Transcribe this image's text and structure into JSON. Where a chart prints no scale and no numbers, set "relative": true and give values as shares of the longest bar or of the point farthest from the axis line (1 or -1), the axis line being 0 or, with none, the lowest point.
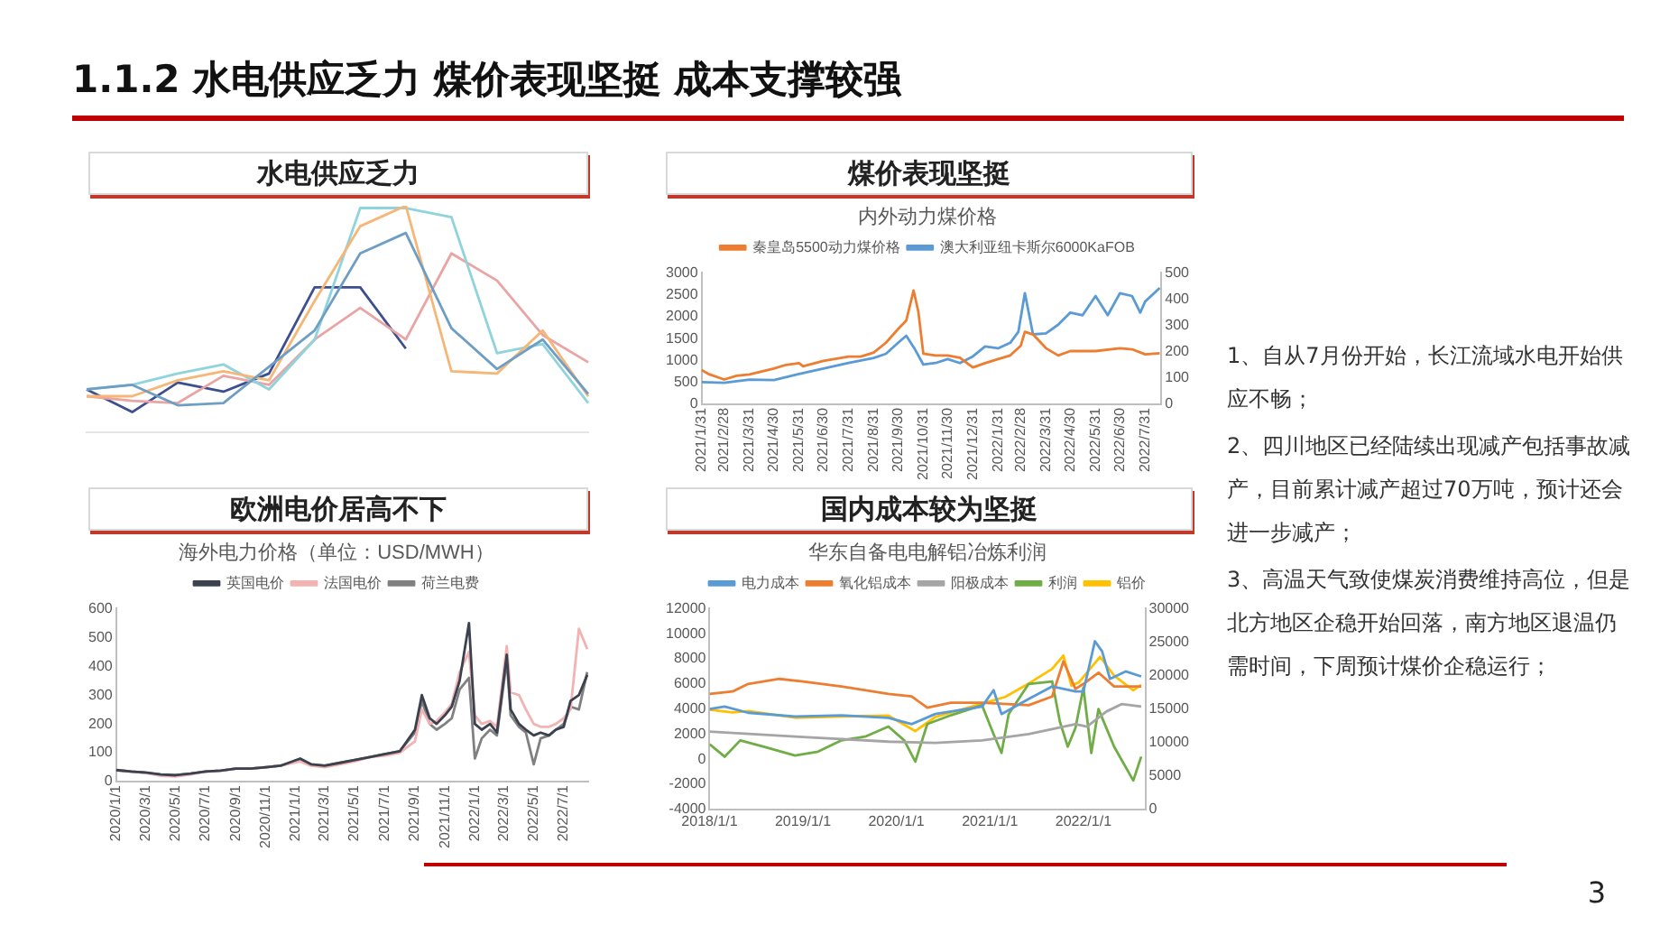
{
  "chart_data": [
    {
      "type": "line",
      "title": "水电供应乏力",
      "relative": true,
      "legend": false,
      "marker": "none",
      "categories": [
        null,
        null,
        null,
        null,
        null,
        null,
        null,
        null,
        null,
        null,
        null,
        null
      ],
      "series": [
        {
          "color": "#6f9ec4",
          "values": [
            0.19,
            0.21,
            0.12,
            0.13,
            0.29,
            0.45,
            0.79,
            0.88,
            0.46,
            0.28,
            0.41,
            0.17
          ]
        },
        {
          "color": "#f5b678",
          "values": [
            0.16,
            0.16,
            0.23,
            0.27,
            0.23,
            0.58,
            0.91,
            1,
            0.27,
            0.26,
            0.45,
            0.16
          ]
        },
        {
          "color": "#8fd3dc",
          "values": [
            0.19,
            0.21,
            0.26,
            0.3,
            0.19,
            0.41,
            0.99,
            0.99,
            0.95,
            0.35,
            0.39,
            0.13
          ]
        },
        {
          "color": "#eaa4a4",
          "values": [
            0.16,
            0.14,
            0.13,
            0.25,
            0.21,
            0.41,
            0.55,
            0.41,
            0.79,
            0.67,
            0.43,
            0.31
          ]
        },
        {
          "color": "#3d4f8f",
          "values": [
            0.19,
            0.09,
            0.22,
            0.18,
            0.26,
            0.64,
            0.64,
            0.37,
            null,
            null,
            null,
            null
          ]
        }
      ]
    },
    {
      "type": "line",
      "title": "煤价表现坚挺",
      "subtitle": "内外动力煤价格",
      "legend": "top",
      "marker": "none",
      "xlim": [
        "2021-01-31",
        "2022-08-20"
      ],
      "xticks": [
        {
          "value": "2021-01-31",
          "label": "2021/1/31"
        },
        {
          "value": "2021-02-28",
          "label": "2021/2/28"
        },
        {
          "value": "2021-03-31",
          "label": "2021/3/31"
        },
        {
          "value": "2021-04-30",
          "label": "2021/4/30"
        },
        {
          "value": "2021-05-31",
          "label": "2021/5/31"
        },
        {
          "value": "2021-06-30",
          "label": "2021/6/30"
        },
        {
          "value": "2021-07-31",
          "label": "2021/7/31"
        },
        {
          "value": "2021-08-31",
          "label": "2021/8/31"
        },
        {
          "value": "2021-09-30",
          "label": "2021/9/30"
        },
        {
          "value": "2021-10-31",
          "label": "2021/10/31"
        },
        {
          "value": "2021-11-30",
          "label": "2021/11/30"
        },
        {
          "value": "2021-12-31",
          "label": "2021/12/31"
        },
        {
          "value": "2022-01-31",
          "label": "2022/1/31"
        },
        {
          "value": "2022-02-28",
          "label": "2022/2/28"
        },
        {
          "value": "2022-03-31",
          "label": "2022/3/31"
        },
        {
          "value": "2022-04-30",
          "label": "2022/4/30"
        },
        {
          "value": "2022-05-31",
          "label": "2022/5/31"
        },
        {
          "value": "2022-06-30",
          "label": "2022/6/30"
        },
        {
          "value": "2022-07-31",
          "label": "2022/7/31"
        }
      ],
      "ylim": [
        0,
        3000
      ],
      "yticks": [
        0,
        500,
        1000,
        1500,
        2000,
        2500,
        3000
      ],
      "y2lim": [
        0,
        500
      ],
      "y2ticks": [
        0,
        100,
        200,
        300,
        400,
        500
      ],
      "series": [
        {
          "name": "秦皇岛5500动力煤价格",
          "color": "#ed7d31",
          "x": [
            "2021-01-31",
            "2021-02-10",
            "2021-02-28",
            "2021-03-15",
            "2021-03-31",
            "2021-04-30",
            "2021-05-15",
            "2021-05-31",
            "2021-06-05",
            "2021-06-30",
            "2021-07-31",
            "2021-08-15",
            "2021-08-31",
            "2021-09-15",
            "2021-09-30",
            "2021-10-10",
            "2021-10-19",
            "2021-10-25",
            "2021-10-31",
            "2021-11-15",
            "2021-11-30",
            "2021-12-15",
            "2021-12-31",
            "2022-01-15",
            "2022-01-31",
            "2022-02-15",
            "2022-02-28",
            "2022-03-05",
            "2022-03-15",
            "2022-03-31",
            "2022-04-15",
            "2022-04-30",
            "2022-05-31",
            "2022-06-30",
            "2022-07-15",
            "2022-07-31",
            "2022-08-18"
          ],
          "values": [
            780,
            680,
            565,
            650,
            680,
            815,
            900,
            940,
            865,
            990,
            1090,
            1090,
            1180,
            1405,
            1720,
            1910,
            2600,
            2100,
            1155,
            1115,
            1115,
            1065,
            840,
            940,
            1030,
            1115,
            1340,
            1655,
            1595,
            1280,
            1115,
            1215,
            1215,
            1280,
            1255,
            1140,
            1165
          ]
        },
        {
          "name": "澳大利亚纽卡斯尔6000KaFOB",
          "color": "#5b9bd5",
          "axis": "y2",
          "x": [
            "2021-01-31",
            "2021-02-28",
            "2021-03-31",
            "2021-04-30",
            "2021-05-31",
            "2021-06-30",
            "2021-07-31",
            "2021-08-31",
            "2021-09-15",
            "2021-09-30",
            "2021-10-10",
            "2021-10-20",
            "2021-10-31",
            "2021-11-15",
            "2021-11-30",
            "2021-12-15",
            "2021-12-31",
            "2022-01-15",
            "2022-01-31",
            "2022-02-15",
            "2022-02-25",
            "2022-03-05",
            "2022-03-15",
            "2022-03-31",
            "2022-04-15",
            "2022-04-30",
            "2022-05-15",
            "2022-05-31",
            "2022-06-15",
            "2022-06-30",
            "2022-07-15",
            "2022-07-25",
            "2022-07-31",
            "2022-08-18"
          ],
          "values": [
            84,
            82,
            94,
            92,
            115,
            136,
            157,
            176,
            192,
            234,
            261,
            213,
            151,
            157,
            172,
            157,
            182,
            220,
            213,
            234,
            276,
            423,
            266,
            270,
            303,
            349,
            339,
            412,
            339,
            423,
            412,
            349,
            391,
            443
          ]
        }
      ]
    },
    {
      "type": "line",
      "title": "欧洲电价居高不下",
      "subtitle": "海外电力价格（单位：USD/MWH）",
      "legend": "top",
      "marker": "none",
      "xlim": [
        "2020-01-01",
        "2022-08-20"
      ],
      "xticks": [
        {
          "value": "2020-01-01",
          "label": "2020/1/1"
        },
        {
          "value": "2020-03-01",
          "label": "2020/3/1"
        },
        {
          "value": "2020-05-01",
          "label": "2020/5/1"
        },
        {
          "value": "2020-07-01",
          "label": "2020/7/1"
        },
        {
          "value": "2020-09-01",
          "label": "2020/9/1"
        },
        {
          "value": "2020-11-01",
          "label": "2020/11/1"
        },
        {
          "value": "2021-01-01",
          "label": "2021/1/1"
        },
        {
          "value": "2021-03-01",
          "label": "2021/3/1"
        },
        {
          "value": "2021-05-01",
          "label": "2021/5/1"
        },
        {
          "value": "2021-07-01",
          "label": "2021/7/1"
        },
        {
          "value": "2021-09-01",
          "label": "2021/9/1"
        },
        {
          "value": "2021-11-01",
          "label": "2021/11/1"
        },
        {
          "value": "2022-01-01",
          "label": "2022/1/1"
        },
        {
          "value": "2022-03-01",
          "label": "2022/3/1"
        },
        {
          "value": "2022-05-01",
          "label": "2022/5/1"
        },
        {
          "value": "2022-07-01",
          "label": "2022/7/1"
        }
      ],
      "ylim": [
        0,
        600
      ],
      "yticks": [
        0,
        100,
        200,
        300,
        400,
        500,
        600
      ],
      "x": [
        "2020-01-01",
        "2020-02-01",
        "2020-03-01",
        "2020-04-01",
        "2020-05-01",
        "2020-06-01",
        "2020-07-01",
        "2020-08-01",
        "2020-09-01",
        "2020-10-01",
        "2020-11-01",
        "2020-12-01",
        "2021-01-10",
        "2021-02-01",
        "2021-03-01",
        "2021-04-01",
        "2021-05-01",
        "2021-06-01",
        "2021-07-01",
        "2021-08-01",
        "2021-09-01",
        "2021-09-15",
        "2021-10-01",
        "2021-10-15",
        "2021-11-01",
        "2021-11-15",
        "2021-12-01",
        "2021-12-20",
        "2022-01-01",
        "2022-01-15",
        "2022-02-01",
        "2022-02-15",
        "2022-03-07",
        "2022-03-15",
        "2022-04-01",
        "2022-04-15",
        "2022-05-01",
        "2022-05-15",
        "2022-06-01",
        "2022-06-15",
        "2022-07-01",
        "2022-07-15",
        "2022-08-01",
        "2022-08-18"
      ],
      "series": [
        {
          "name": "英国电价",
          "color": "#3b414e",
          "values": [
            40,
            35,
            32,
            25,
            22,
            28,
            35,
            38,
            45,
            45,
            50,
            55,
            80,
            60,
            55,
            65,
            75,
            85,
            95,
            105,
            180,
            300,
            220,
            200,
            230,
            260,
            350,
            550,
            200,
            180,
            200,
            170,
            440,
            250,
            200,
            180,
            160,
            170,
            160,
            180,
            190,
            280,
            300,
            370
          ]
        },
        {
          "name": "法国电价",
          "color": "#f2b3b3",
          "values": [
            40,
            35,
            30,
            20,
            18,
            25,
            35,
            38,
            45,
            45,
            50,
            55,
            70,
            55,
            50,
            60,
            70,
            85,
            90,
            100,
            140,
            250,
            200,
            210,
            240,
            270,
            380,
            450,
            230,
            200,
            210,
            190,
            470,
            310,
            300,
            250,
            200,
            190,
            190,
            200,
            220,
            250,
            530,
            460
          ]
        },
        {
          "name": "荷兰电费",
          "color": "#808080",
          "values": [
            40,
            35,
            30,
            25,
            22,
            28,
            35,
            38,
            45,
            45,
            50,
            55,
            75,
            60,
            55,
            65,
            75,
            85,
            95,
            105,
            170,
            280,
            200,
            180,
            200,
            220,
            320,
            360,
            80,
            150,
            180,
            160,
            420,
            230,
            190,
            170,
            60,
            150,
            160,
            180,
            200,
            260,
            250,
            380
          ]
        }
      ]
    },
    {
      "type": "line",
      "title": "国内成本较为坚挺",
      "subtitle": "华东自备电电解铝冶炼利润",
      "legend": "top",
      "marker": "none",
      "xlim": [
        "2018-01-01",
        "2022-08-31"
      ],
      "xticks": [
        {
          "value": "2018-01-01",
          "label": "2018/1/1"
        },
        {
          "value": "2019-01-01",
          "label": "2019/1/1"
        },
        {
          "value": "2020-01-01",
          "label": "2020/1/1"
        },
        {
          "value": "2021-01-01",
          "label": "2021/1/1"
        },
        {
          "value": "2022-01-01",
          "label": "2022/1/1"
        }
      ],
      "ylim": [
        -4000,
        12000
      ],
      "yticks": [
        -4000,
        -2000,
        0,
        2000,
        4000,
        6000,
        8000,
        10000,
        12000
      ],
      "y2lim": [
        0,
        30000
      ],
      "y2ticks": [
        0,
        5000,
        10000,
        15000,
        20000,
        25000,
        30000
      ],
      "series": [
        {
          "name": "电力成本",
          "color": "#5b9bd5",
          "x": [
            "2018-01-01",
            "2018-03-01",
            "2018-06-01",
            "2018-12-01",
            "2019-06-01",
            "2019-12-01",
            "2020-03-01",
            "2020-06-01",
            "2020-12-01",
            "2021-01-15",
            "2021-02-15",
            "2021-06-01",
            "2021-09-01",
            "2021-12-01",
            "2022-01-01",
            "2022-02-15",
            "2022-03-15",
            "2022-04-15",
            "2022-06-15",
            "2022-08-15"
          ],
          "values": [
            4000,
            4200,
            3700,
            3400,
            3500,
            3300,
            2800,
            3600,
            4200,
            5500,
            3600,
            4800,
            5800,
            5400,
            5400,
            9400,
            8600,
            6400,
            7000,
            6600
          ]
        },
        {
          "name": "氧化铝成本",
          "color": "#ed7d31",
          "x": [
            "2018-01-01",
            "2018-04-01",
            "2018-06-01",
            "2018-10-01",
            "2019-01-01",
            "2019-06-01",
            "2019-12-01",
            "2020-03-01",
            "2020-05-01",
            "2020-08-01",
            "2020-12-01",
            "2021-06-01",
            "2021-09-01",
            "2021-10-15",
            "2021-12-01",
            "2022-01-01",
            "2022-03-01",
            "2022-05-01",
            "2022-08-15"
          ],
          "values": [
            5200,
            5400,
            6000,
            6400,
            6200,
            5800,
            5200,
            5000,
            4100,
            4500,
            4500,
            4300,
            5000,
            7800,
            5600,
            6000,
            6900,
            5800,
            5800
          ]
        },
        {
          "name": "阳极成本",
          "color": "#a5a5a5",
          "x": [
            "2018-01-01",
            "2018-12-01",
            "2019-12-01",
            "2020-06-01",
            "2020-12-01",
            "2021-06-01",
            "2021-12-01",
            "2022-01-15",
            "2022-04-01",
            "2022-06-01",
            "2022-08-15"
          ],
          "values": [
            2200,
            1800,
            1400,
            1300,
            1500,
            2000,
            2800,
            2600,
            3800,
            4400,
            4200
          ]
        },
        {
          "name": "利润",
          "color": "#70ad47",
          "x": [
            "2018-01-01",
            "2018-03-01",
            "2018-05-01",
            "2018-08-01",
            "2018-12-01",
            "2019-03-01",
            "2019-06-01",
            "2019-09-01",
            "2019-12-01",
            "2020-02-01",
            "2020-03-15",
            "2020-05-01",
            "2020-08-01",
            "2020-12-01",
            "2021-01-15",
            "2021-02-15",
            "2021-03-15",
            "2021-06-01",
            "2021-09-01",
            "2021-10-01",
            "2021-11-01",
            "2021-12-01",
            "2022-01-01",
            "2022-02-01",
            "2022-03-01",
            "2022-05-01",
            "2022-07-15",
            "2022-08-15"
          ],
          "values": [
            1200,
            200,
            1500,
            1000,
            300,
            600,
            1500,
            1800,
            2600,
            1500,
            -200,
            2800,
            3500,
            4300,
            2000,
            500,
            3600,
            6000,
            6200,
            3000,
            1000,
            2500,
            5700,
            500,
            4000,
            1000,
            -1700,
            200
          ]
        },
        {
          "name": "铝价",
          "color": "#ffc000",
          "axis": "y2",
          "x": [
            "2018-01-01",
            "2018-04-01",
            "2018-06-01",
            "2018-12-01",
            "2019-06-01",
            "2019-12-01",
            "2020-03-15",
            "2020-06-01",
            "2020-12-01",
            "2021-03-01",
            "2021-06-01",
            "2021-09-01",
            "2021-10-15",
            "2021-11-15",
            "2021-12-15",
            "2022-03-07",
            "2022-05-01",
            "2022-07-15",
            "2022-08-15"
          ],
          "values": [
            14900,
            14500,
            14700,
            13700,
            13900,
            14000,
            11700,
            13800,
            15800,
            16800,
            18800,
            21000,
            23000,
            18500,
            19000,
            22800,
            20000,
            17800,
            18600
          ]
        }
      ]
    },
    {
      "type": "other",
      "title": "1.1.2  水电供应乏力  煤价表现坚挺  成本支撑较强",
      "annotations": [
        "1、自从7月份开始，长江流域水电开始供应不畅；",
        "2、四川地区已经陆续出现减产包括事故减产，目前累计减产超过70万吨，预计还会进一步减产；",
        "3、高温天气致使煤炭消费维持高位，但是北方地区企稳开始回落，南方地区退温仍需时间，下周预计煤价企稳运行；",
        "3"
      ]
    }
  ]
}
